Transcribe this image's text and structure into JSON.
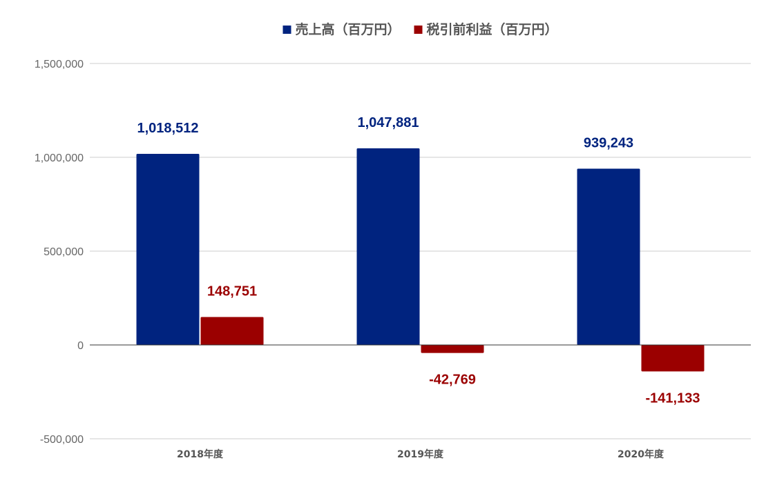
{
  "colors": {
    "revenue": "#00237f",
    "pretax": "#9b0000",
    "grid": "#cccccc",
    "zero_line": "#333333"
  },
  "chart_data": {
    "type": "bar",
    "title": "",
    "xlabel": "",
    "ylabel": "",
    "categories": [
      "2018年度",
      "2019年度",
      "2020年度"
    ],
    "series": [
      {
        "name": "売上高（百万円）",
        "values": [
          1018512,
          1047881,
          939243
        ],
        "value_labels": [
          "1,018,512",
          "1,047,881",
          "939,243"
        ]
      },
      {
        "name": "税引前利益（百万円）",
        "values": [
          148751,
          -42769,
          -141133
        ],
        "value_labels": [
          "148,751",
          "-42,769",
          "-141,133"
        ]
      }
    ],
    "ylim": [
      -500000,
      1500000
    ],
    "yticks": [
      -500000,
      0,
      500000,
      1000000,
      1500000
    ],
    "ytick_labels": [
      "-500,000",
      "0",
      "500,000",
      "1,000,000",
      "1,500,000"
    ],
    "grid": true,
    "legend_position": "top-center",
    "data_labels": true
  }
}
